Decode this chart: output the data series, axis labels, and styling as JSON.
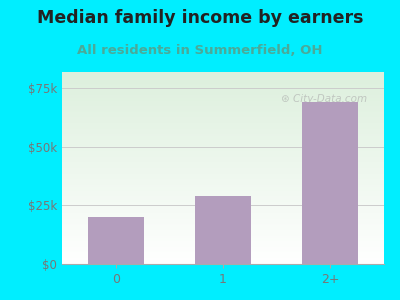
{
  "title": "Median family income by earners",
  "subtitle": "All residents in Summerfield, OH",
  "categories": [
    "0",
    "1",
    "2+"
  ],
  "values": [
    20000,
    29000,
    69000
  ],
  "bar_color": "#b39dbd",
  "yticks": [
    0,
    25000,
    50000,
    75000
  ],
  "ytick_labels": [
    "$0",
    "$25k",
    "$50k",
    "$75k"
  ],
  "ylim": [
    0,
    82000
  ],
  "outer_bg": "#00eeff",
  "plot_bg_top": "#ddf0dd",
  "plot_bg_bottom": "#ffffff",
  "title_color": "#222222",
  "subtitle_color": "#4aaa99",
  "tick_color": "#777777",
  "watermark": " City-Data.com",
  "title_fontsize": 12.5,
  "subtitle_fontsize": 9.5,
  "grid_color": "#cccccc",
  "spine_color": "#aaaaaa"
}
